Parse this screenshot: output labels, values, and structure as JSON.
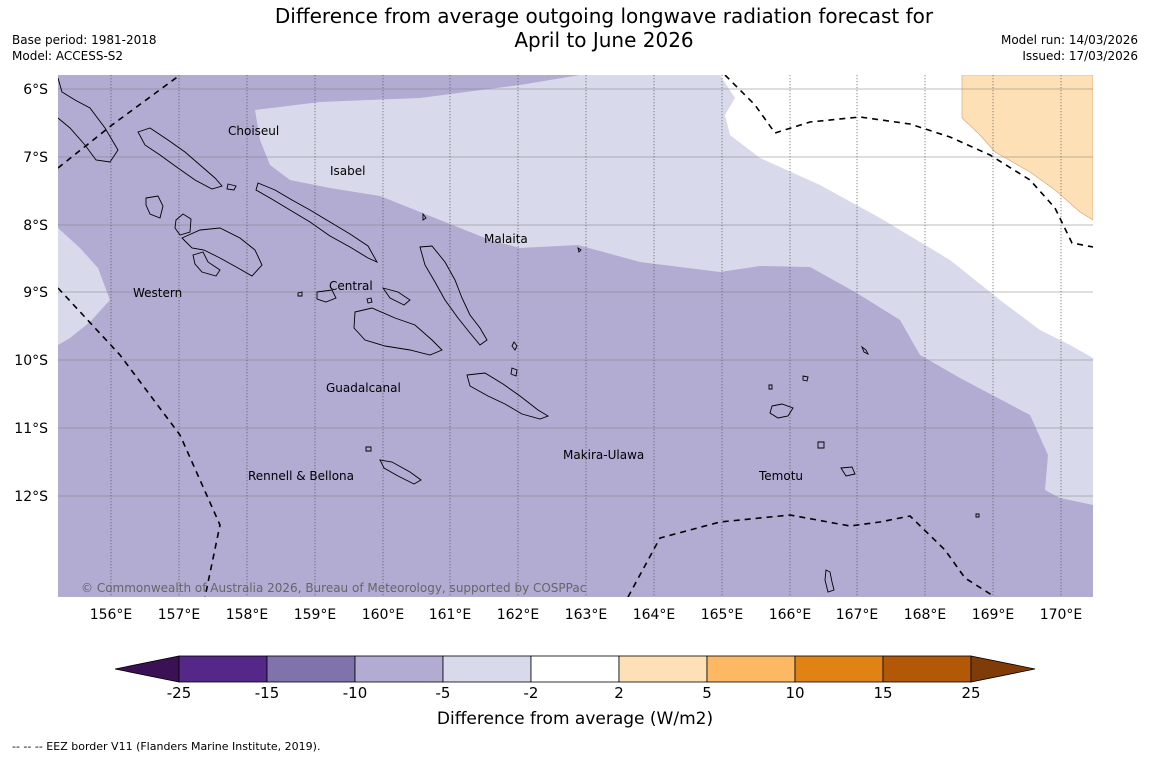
{
  "title_line1": "Difference from average outgoing longwave radiation forecast for",
  "title_line2": "April to June 2026",
  "base_period": "Base period: 1981-2018",
  "model": "Model: ACCESS-S2",
  "model_run": "Model run: 14/03/2026",
  "issued": "Issued: 17/03/2026",
  "copyright": "© Commonwealth of Australia 2026, Bureau of Meteorology, supported by COSPPac",
  "lat_labels": [
    "6°S",
    "7°S",
    "8°S",
    "9°S",
    "10°S",
    "11°S",
    "12°S"
  ],
  "lon_labels": [
    "156°E",
    "157°E",
    "158°E",
    "159°E",
    "160°E",
    "161°E",
    "162°E",
    "163°E",
    "164°E",
    "165°E",
    "166°E",
    "167°E",
    "168°E",
    "169°E",
    "170°E"
  ],
  "provinces": {
    "choiseul": "Choiseul",
    "isabel": "Isabel",
    "malaita": "Malaita",
    "western": "Western",
    "central": "Central",
    "guadalcanal": "Guadalcanal",
    "makira": "Makira-Ulawa",
    "rennell": "Rennell & Bellona",
    "temotu": "Temotu"
  },
  "colorbar": {
    "title": "Difference from average (W/m2)",
    "ticks": [
      "-25",
      "-15",
      "-10",
      "-5",
      "-2",
      "2",
      "5",
      "10",
      "15",
      "25"
    ],
    "colors": [
      "#3b1156",
      "#542788",
      "#8073ac",
      "#b2abd2",
      "#d8daeb",
      "#ffffff",
      "#fee0b6",
      "#fdb863",
      "#e08214",
      "#b35806",
      "#7f3b08"
    ]
  },
  "footnote": "--  --  -- EEZ border V11 (Flanders Marine Institute, 2019)."
}
